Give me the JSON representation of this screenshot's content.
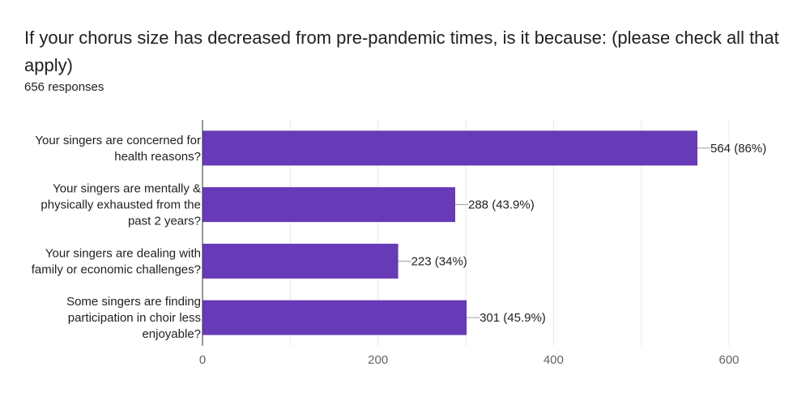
{
  "header": {
    "title": "If your chorus size has decreased from pre-pandemic times, is it because: (please check all that apply)",
    "responses": "656 responses"
  },
  "colors": {
    "bar": "#673ab7",
    "gridline": "#e8e8e8",
    "axis": "#9e9e9e"
  },
  "chart_data": {
    "type": "bar",
    "orientation": "horizontal",
    "categories": [
      [
        "Your singers are concerned for",
        "health reasons?"
      ],
      [
        "Your singers are mentally &",
        "physically exhausted from the",
        "past 2 years?"
      ],
      [
        "Your singers are dealing with",
        "family or economic challenges?"
      ],
      [
        "Some singers are finding",
        "participation in choir less",
        "enjoyable?"
      ]
    ],
    "values": [
      564,
      288,
      223,
      301
    ],
    "data_labels": [
      "564 (86%)",
      "288 (43.9%)",
      "223 (34%)",
      "301 (45.9%)"
    ],
    "xlim": [
      0,
      600
    ],
    "xticks": [
      0,
      200,
      400,
      600
    ],
    "grid": true
  }
}
